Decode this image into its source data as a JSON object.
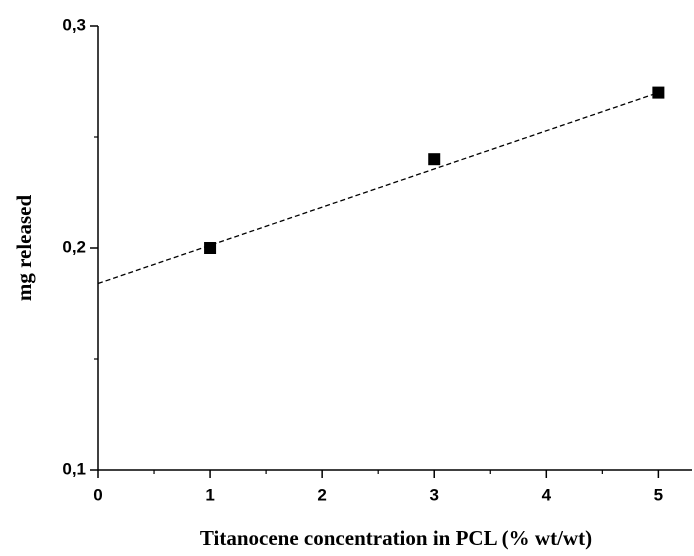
{
  "chart_data": {
    "type": "scatter",
    "x_label": "Titanocene concentration in PCL (% wt/wt)",
    "y_label": "mg released",
    "x": [
      1,
      3,
      5
    ],
    "values": [
      0.2,
      0.24,
      0.27
    ],
    "color": "#000000",
    "fit_line": {
      "x": [
        0,
        5
      ],
      "values": [
        0.184,
        0.27
      ]
    },
    "xlim": [
      0,
      5.3
    ],
    "ylim": [
      0.1,
      0.3
    ],
    "xticks": [
      0,
      1,
      2,
      3,
      4,
      5
    ],
    "yticks": [
      {
        "value": 0.1,
        "label": "0,1"
      },
      {
        "value": 0.2,
        "label": "0,2"
      },
      {
        "value": 0.3,
        "label": "0,3"
      }
    ],
    "grid": false
  }
}
